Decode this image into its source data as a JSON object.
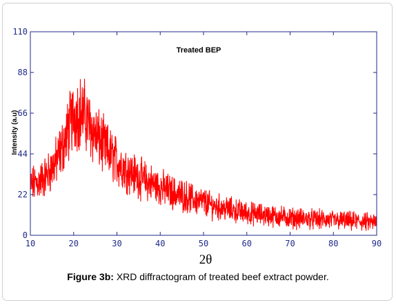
{
  "chart_data": {
    "type": "line",
    "title": "Treated BEP",
    "xlabel": "2θ",
    "ylabel": "Intensity (a.u)",
    "xlim": [
      10,
      90
    ],
    "ylim": [
      0,
      110
    ],
    "x_ticks": [
      "10",
      "20",
      "30",
      "40",
      "50",
      "60",
      "70",
      "80",
      "90"
    ],
    "y_ticks": [
      "0",
      "22",
      "44",
      "66",
      "88",
      "110"
    ],
    "grid": false,
    "legend": "none",
    "series_color": "#ff0000",
    "series": [
      {
        "x": [
          10,
          12,
          14,
          16,
          18,
          19,
          20,
          21,
          22,
          23,
          24,
          26,
          28,
          30,
          32,
          34,
          36,
          38,
          40,
          42,
          44,
          46,
          48,
          50,
          52,
          54,
          56,
          58,
          60,
          62,
          64,
          66,
          68,
          70,
          72,
          74,
          76,
          78,
          80,
          82,
          84,
          86,
          88,
          90
        ],
        "values": [
          27,
          29,
          33,
          40,
          51,
          59,
          65,
          67,
          66,
          63,
          58,
          51,
          45,
          40,
          36,
          33,
          30,
          28,
          26,
          24,
          22,
          21,
          19,
          18,
          16,
          15,
          14,
          13,
          12,
          11.5,
          11,
          10.5,
          10,
          9.5,
          9,
          9,
          8.5,
          8.5,
          8,
          8,
          7.5,
          7.5,
          7,
          7
        ]
      }
    ]
  },
  "caption": {
    "label": "Figure 3b:",
    "text": " XRD diffractogram of treated beef extract powder."
  }
}
